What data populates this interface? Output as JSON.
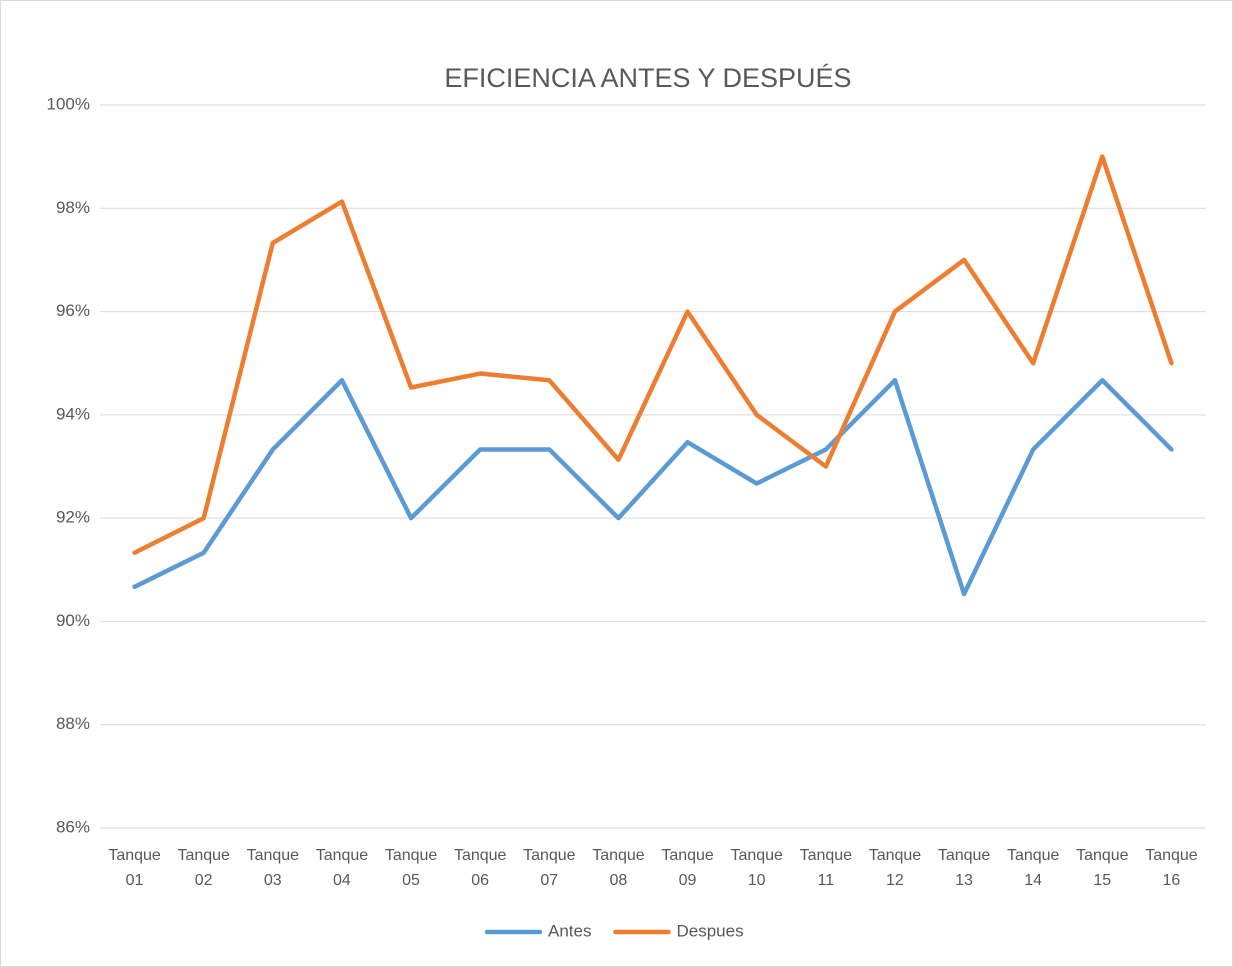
{
  "chart_data": {
    "type": "line",
    "title": "EFICIENCIA ANTES Y DESPUÉS",
    "categories": [
      "Tanque 01",
      "Tanque 02",
      "Tanque 03",
      "Tanque 04",
      "Tanque 05",
      "Tanque 06",
      "Tanque 07",
      "Tanque 08",
      "Tanque 09",
      "Tanque 10",
      "Tanque 11",
      "Tanque 12",
      "Tanque 13",
      "Tanque 14",
      "Tanque 15",
      "Tanque 16"
    ],
    "series": [
      {
        "name": "Antes",
        "color": "#5b9bd5",
        "values": [
          90.67,
          91.33,
          93.33,
          94.67,
          92.0,
          93.33,
          93.33,
          92.0,
          93.47,
          92.67,
          93.33,
          94.67,
          90.53,
          93.33,
          94.67,
          93.33
        ]
      },
      {
        "name": "Despues",
        "color": "#ed7d31",
        "values": [
          91.33,
          92.0,
          97.33,
          98.13,
          94.53,
          94.8,
          94.67,
          93.13,
          96.0,
          94.0,
          93.0,
          96.0,
          97.0,
          95.0,
          99.0,
          95.0
        ]
      }
    ],
    "ylim": [
      86,
      100
    ],
    "yticks": [
      {
        "value": 86,
        "label": "86%"
      },
      {
        "value": 88,
        "label": "88%"
      },
      {
        "value": 90,
        "label": "90%"
      },
      {
        "value": 92,
        "label": "92%"
      },
      {
        "value": 94,
        "label": "94%"
      },
      {
        "value": 96,
        "label": "96%"
      },
      {
        "value": 98,
        "label": "98%"
      },
      {
        "value": 100,
        "label": "100%"
      }
    ],
    "grid": true,
    "legend": "bottom"
  }
}
